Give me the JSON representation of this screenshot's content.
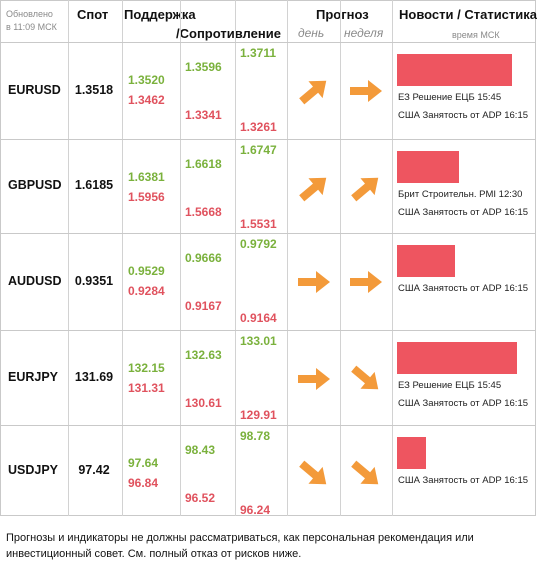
{
  "header": {
    "updated_label": "Обновлено",
    "updated_time": "в 11:09 МСК",
    "spot": "Спот",
    "support": "Поддержка",
    "resistance": "/Сопротивление",
    "forecast": "Прогноз",
    "day": "день",
    "week": "неделя",
    "news": "Новости / Статистика",
    "news_time": "время МСК"
  },
  "colors": {
    "green": "#7ab13c",
    "red": "#e0525e",
    "arrow": "#f39a3a",
    "bar": "#ee5560"
  },
  "rows": [
    {
      "pair": "EURUSD",
      "spot": "1.3518",
      "s1_up": "1.3520",
      "s1_dn": "1.3462",
      "s2_up": "1.3596",
      "s2_dn": "1.3341",
      "s3_up": "1.3711",
      "s3_dn": "1.3261",
      "day_icon": "arrow-up-right-icon",
      "week_icon": "arrow-right-icon",
      "bar_level": 0.93,
      "news": [
        "ЕЗ Решение ЕЦБ 15:45",
        "США Занятость от ADP 16:15"
      ]
    },
    {
      "pair": "GBPUSD",
      "spot": "1.6185",
      "s1_up": "1.6381",
      "s1_dn": "1.5956",
      "s2_up": "1.6618",
      "s2_dn": "1.5668",
      "s3_up": "1.6747",
      "s3_dn": "1.5531",
      "day_icon": "arrow-up-right-icon",
      "week_icon": "arrow-up-right-icon",
      "bar_level": 0.5,
      "news": [
        "Брит Строительн. PMI 12:30",
        "США Занятость от ADP 16:15"
      ]
    },
    {
      "pair": "AUDUSD",
      "spot": "0.9351",
      "s1_up": "0.9529",
      "s1_dn": "0.9284",
      "s2_up": "0.9666",
      "s2_dn": "0.9167",
      "s3_up": "0.9792",
      "s3_dn": "0.9164",
      "day_icon": "arrow-right-icon",
      "week_icon": "arrow-right-icon",
      "bar_level": 0.47,
      "news": [
        "США Занятость от ADP 16:15"
      ]
    },
    {
      "pair": "EURJPY",
      "spot": "131.69",
      "s1_up": "132.15",
      "s1_dn": "131.31",
      "s2_up": "132.63",
      "s2_dn": "130.61",
      "s3_up": "133.01",
      "s3_dn": "129.91",
      "day_icon": "arrow-right-icon",
      "week_icon": "arrow-down-right-icon",
      "bar_level": 0.97,
      "news": [
        "ЕЗ Решение ЕЦБ 15:45",
        "США Занятость от ADP 16:15"
      ]
    },
    {
      "pair": "USDJPY",
      "spot": "97.42",
      "s1_up": "97.64",
      "s1_dn": "96.84",
      "s2_up": "98.43",
      "s2_dn": "96.52",
      "s3_up": "98.78",
      "s3_dn": "96.24",
      "day_icon": "arrow-down-right-icon",
      "week_icon": "arrow-down-right-icon",
      "bar_level": 0.23,
      "news": [
        "США Занятость от ADP 16:15"
      ]
    }
  ],
  "footer": "Прогнозы и индикаторы не должны рассматриваться, как персональная рекомендация или инвестиционный совет. См. полный отказ от рисков ниже."
}
